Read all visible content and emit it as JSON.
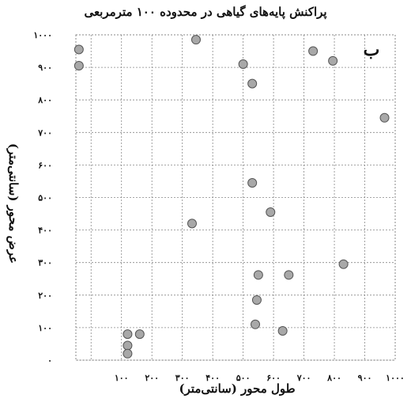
{
  "chart_data": {
    "type": "scatter",
    "title": "پراکنش پایه‌های گیاهی در محدوده ۱۰۰ مترمربعی",
    "xlabel": "طول محور (سانتی‌متر)",
    "ylabel": "عرض محور (سانتی‌متر)",
    "panel_label": "ب",
    "xlim": [
      -50,
      1000
    ],
    "ylim": [
      0,
      1000
    ],
    "grid": true,
    "x_ticks": [
      100,
      200,
      300,
      400,
      500,
      600,
      700,
      800,
      900,
      1000
    ],
    "x_tick_labels": [
      "۱۰۰",
      "۲۰۰",
      "۳۰۰",
      "۴۰۰",
      "۵۰۰",
      "۶۰۰",
      "۷۰۰",
      "۸۰۰",
      "۹۰۰",
      "۱۰۰۰"
    ],
    "y_ticks": [
      0,
      100,
      200,
      300,
      400,
      500,
      600,
      700,
      800,
      900,
      1000
    ],
    "y_tick_labels": [
      "۰",
      "۱۰۰",
      "۲۰۰",
      "۳۰۰",
      "۴۰۰",
      "۵۰۰",
      "۶۰۰",
      "۷۰۰",
      "۸۰۰",
      "۹۰۰",
      "۱۰۰۰"
    ],
    "points": [
      {
        "x": -40,
        "y": 955
      },
      {
        "x": -40,
        "y": 905
      },
      {
        "x": 120,
        "y": 80
      },
      {
        "x": 120,
        "y": 45
      },
      {
        "x": 120,
        "y": 20
      },
      {
        "x": 160,
        "y": 80
      },
      {
        "x": 332,
        "y": 420
      },
      {
        "x": 345,
        "y": 985
      },
      {
        "x": 500,
        "y": 910
      },
      {
        "x": 530,
        "y": 850
      },
      {
        "x": 530,
        "y": 545
      },
      {
        "x": 540,
        "y": 110
      },
      {
        "x": 545,
        "y": 185
      },
      {
        "x": 550,
        "y": 262
      },
      {
        "x": 590,
        "y": 455
      },
      {
        "x": 630,
        "y": 90
      },
      {
        "x": 650,
        "y": 262
      },
      {
        "x": 730,
        "y": 950
      },
      {
        "x": 795,
        "y": 920
      },
      {
        "x": 830,
        "y": 295
      },
      {
        "x": 965,
        "y": 745
      }
    ],
    "marker_fill": "#a8a8a8",
    "marker_stroke": "#555555",
    "grid_color": "#888888"
  }
}
